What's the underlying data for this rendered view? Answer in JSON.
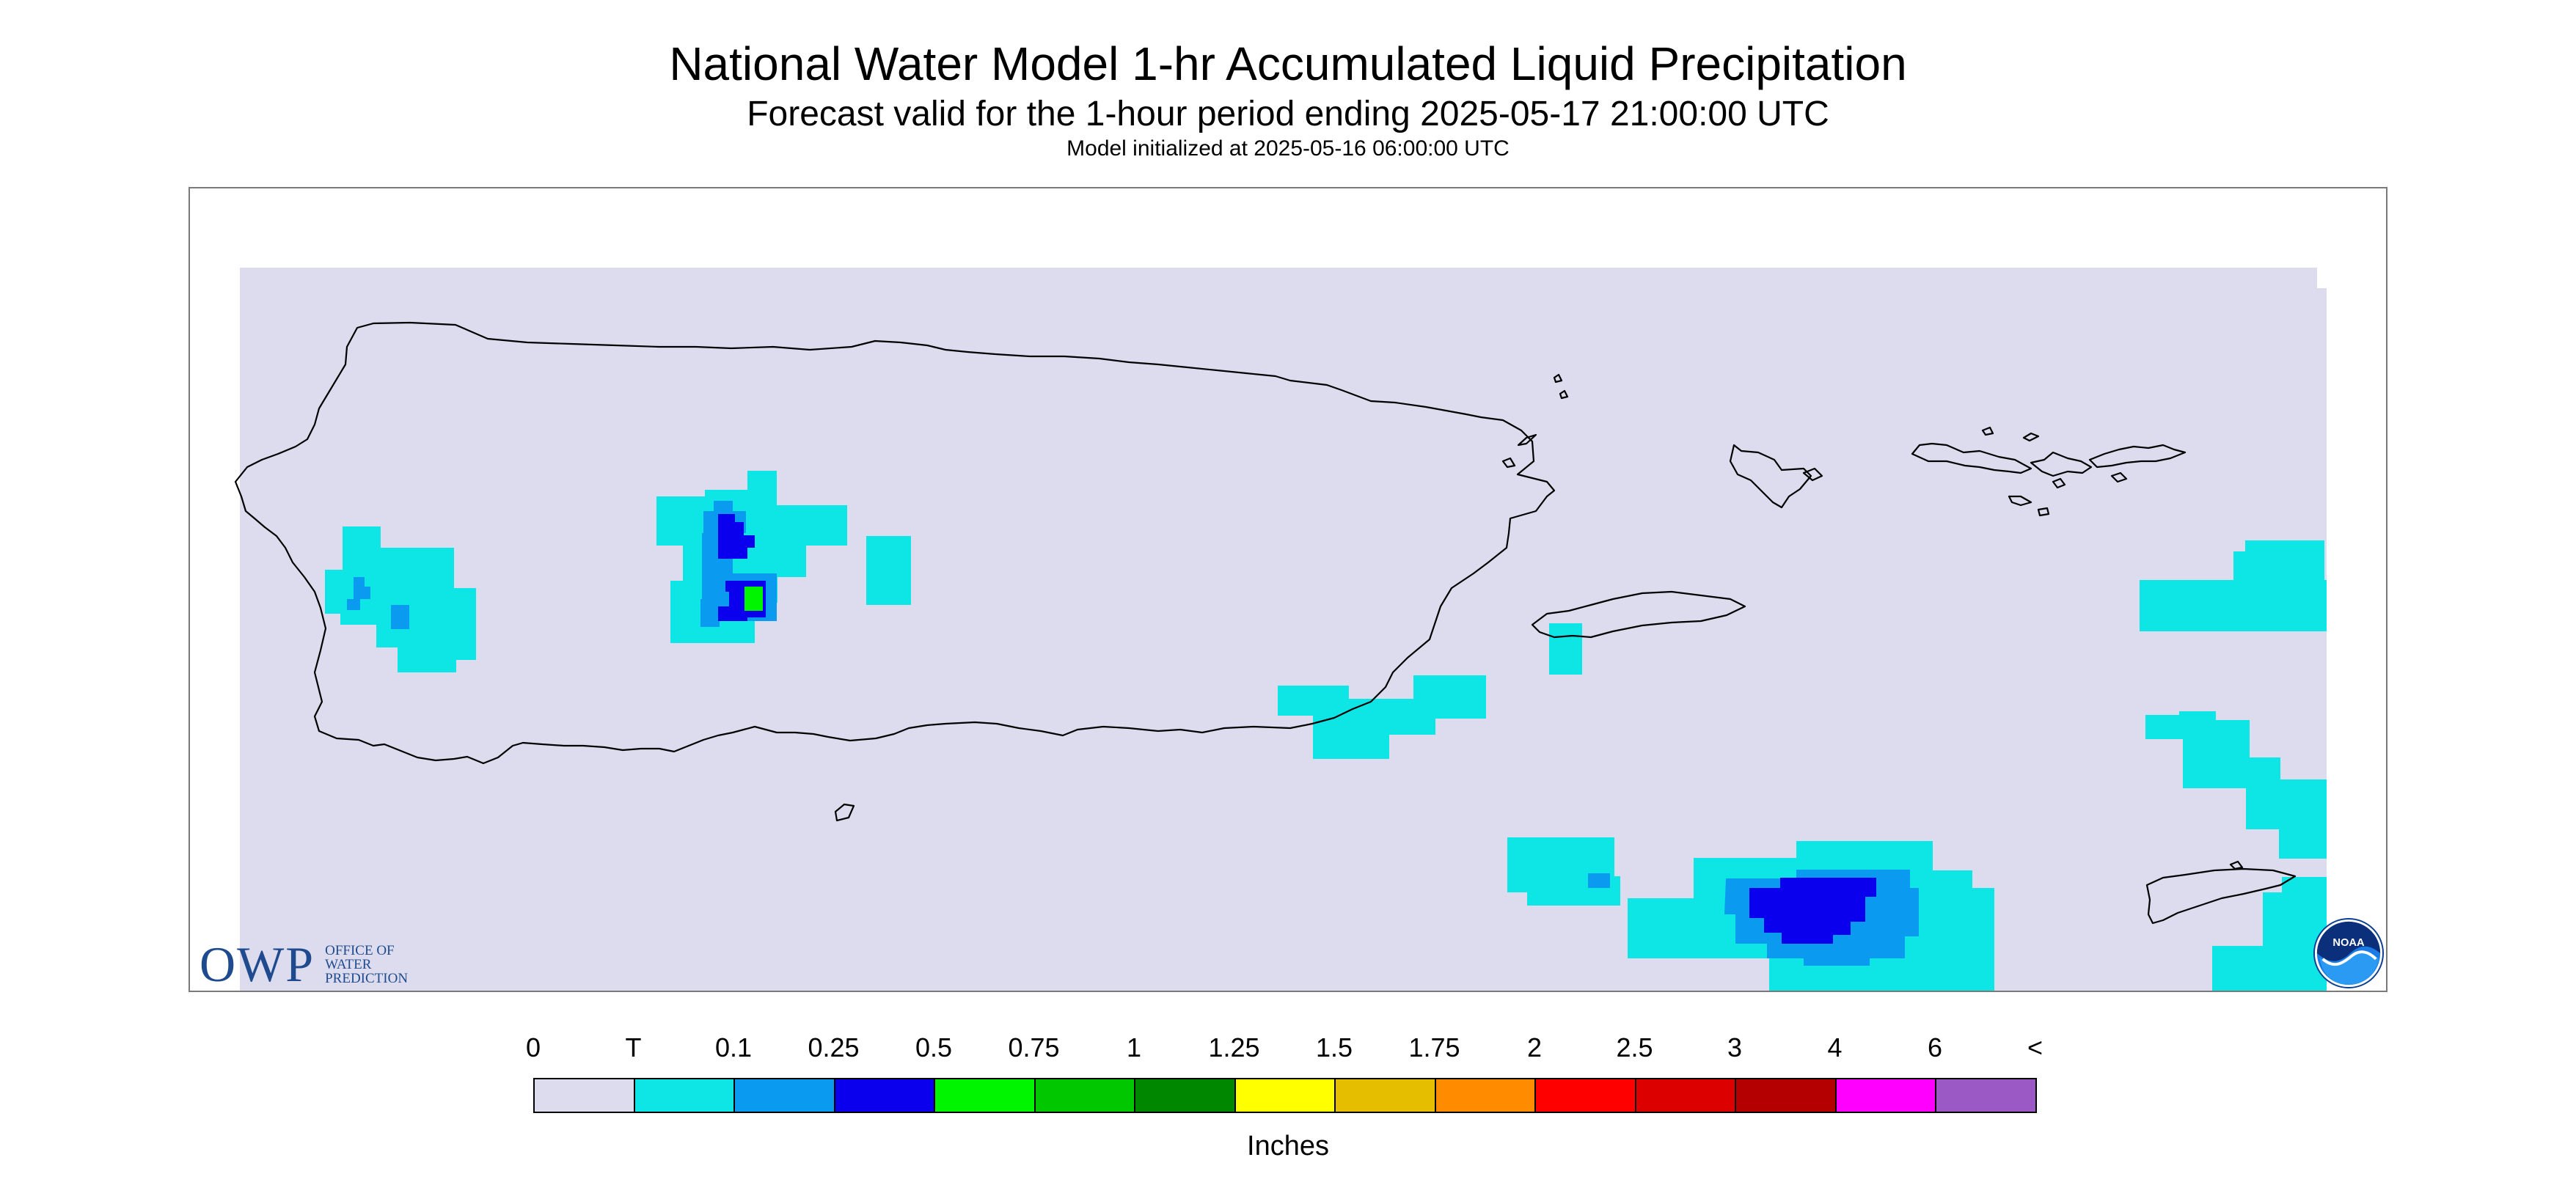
{
  "header": {
    "title": "National Water Model 1-hr Accumulated Liquid Precipitation",
    "subtitle": "Forecast valid for the 1-hour period ending 2025-05-17 21:00:00 UTC",
    "init_line": "Model initialized at 2025-05-16 06:00:00 UTC"
  },
  "map": {
    "region": "Puerto Rico and U.S. Virgin Islands",
    "background_color": "#dcdcee",
    "coastline_color": "#000000",
    "precip_areas": [
      {
        "location": "western Puerto Rico",
        "max_category": "0.1"
      },
      {
        "location": "west-central Puerto Rico interior",
        "max_category": "0.5"
      },
      {
        "location": "southeast of Puerto Rico",
        "max_category": "T"
      },
      {
        "location": "near Vieques",
        "max_category": "T"
      },
      {
        "location": "south Caribbean, northwest of St. Croix",
        "max_category": "0.25"
      },
      {
        "location": "east of St. John",
        "max_category": "T"
      },
      {
        "location": "near St. Croix",
        "max_category": "T"
      }
    ]
  },
  "logos": {
    "owp_main": "OWP",
    "owp_text": "OFFICE OF\nWATER\nPREDICTION",
    "noaa_text": "NOAA"
  },
  "colorbar": {
    "labels": [
      "0",
      "T",
      "0.1",
      "0.25",
      "0.5",
      "0.75",
      "1",
      "1.25",
      "1.5",
      "1.75",
      "2",
      "2.5",
      "3",
      "4",
      "6",
      "<"
    ],
    "colors": [
      "#dcdcee",
      "#0ee6e6",
      "#0a9bf0",
      "#0a00ee",
      "#00f500",
      "#00c700",
      "#008700",
      "#ffff00",
      "#e6be00",
      "#ff8c00",
      "#ff0000",
      "#dc0000",
      "#b50000",
      "#ff00ff",
      "#9b59c6"
    ],
    "units": "Inches"
  }
}
